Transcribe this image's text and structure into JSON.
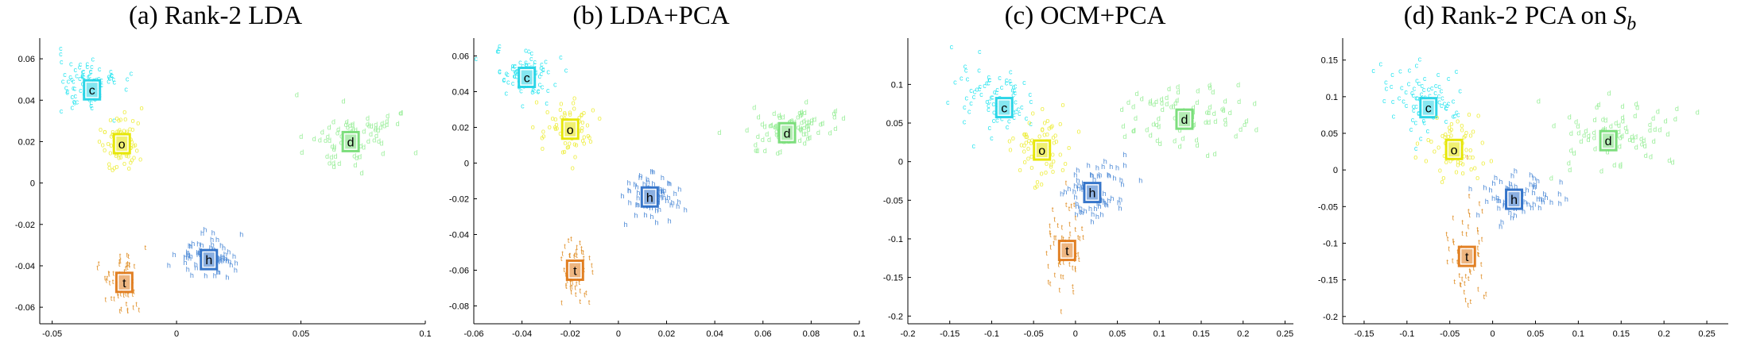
{
  "chart_data": [
    {
      "type": "scatter",
      "title": "(a) Rank-2 LDA",
      "xlim": [
        -0.055,
        0.1
      ],
      "ylim": [
        -0.068,
        0.07
      ],
      "xticks": [
        -0.05,
        0,
        0.05,
        0.1
      ],
      "xtick_labels": [
        "-0.05",
        "0",
        "0.05",
        "0.1"
      ],
      "yticks": [
        -0.06,
        -0.04,
        -0.02,
        0,
        0.02,
        0.04,
        0.06
      ],
      "ytick_labels": [
        "-0.06",
        "-0.04",
        "-0.02",
        "0",
        "0.02",
        "0.04",
        "0.06"
      ],
      "grid": false,
      "clusters": [
        {
          "label": "c",
          "color": "#33e6f0",
          "box": "#22d3e6",
          "center": [
            -0.034,
            0.045
          ],
          "spread": [
            0.006,
            0.006
          ],
          "tail": [
            -0.01,
            0.012
          ],
          "count": 80
        },
        {
          "label": "o",
          "color": "#eeee44",
          "box": "#e6e600",
          "center": [
            -0.022,
            0.019
          ],
          "spread": [
            0.005,
            0.008
          ],
          "tail": [
            0,
            0
          ],
          "count": 70
        },
        {
          "label": "d",
          "color": "#99ee99",
          "box": "#77dd77",
          "center": [
            0.07,
            0.02
          ],
          "spread": [
            0.01,
            0.006
          ],
          "tail": [
            0.02,
            0.008
          ],
          "count": 80
        },
        {
          "label": "h",
          "color": "#4d8ad6",
          "box": "#2d6fc8",
          "center": [
            0.013,
            -0.037
          ],
          "spread": [
            0.006,
            0.005
          ],
          "tail": [
            0.012,
            0
          ],
          "count": 70
        },
        {
          "label": "t",
          "color": "#e0902a",
          "box": "#e07a1a",
          "center": [
            -0.021,
            -0.048
          ],
          "spread": [
            0.004,
            0.008
          ],
          "tail": [
            0,
            0
          ],
          "count": 60
        }
      ]
    },
    {
      "type": "scatter",
      "title": "(b) LDA+PCA",
      "xlim": [
        -0.06,
        0.1
      ],
      "ylim": [
        -0.09,
        0.07
      ],
      "xticks": [
        -0.06,
        -0.04,
        -0.02,
        0,
        0.02,
        0.04,
        0.06,
        0.08,
        0.1
      ],
      "xtick_labels": [
        "-0.06",
        "-0.04",
        "-0.02",
        "0",
        "0.02",
        "0.04",
        "0.06",
        "0.08",
        "0.1"
      ],
      "yticks": [
        -0.08,
        -0.06,
        -0.04,
        -0.02,
        0,
        0.02,
        0.04,
        0.06
      ],
      "ytick_labels": [
        "-0.08",
        "-0.06",
        "-0.04",
        "-0.02",
        "0",
        "0.02",
        "0.04",
        "0.06"
      ],
      "grid": false,
      "clusters": [
        {
          "label": "c",
          "color": "#33e6f0",
          "box": "#22d3e6",
          "center": [
            -0.038,
            0.048
          ],
          "spread": [
            0.006,
            0.006
          ],
          "tail": [
            -0.01,
            0.012
          ],
          "count": 80
        },
        {
          "label": "o",
          "color": "#eeee44",
          "box": "#e6e600",
          "center": [
            -0.02,
            0.019
          ],
          "spread": [
            0.006,
            0.008
          ],
          "tail": [
            0,
            0
          ],
          "count": 70
        },
        {
          "label": "d",
          "color": "#99ee99",
          "box": "#77dd77",
          "center": [
            0.07,
            0.017
          ],
          "spread": [
            0.01,
            0.006
          ],
          "tail": [
            0.02,
            0.008
          ],
          "count": 80
        },
        {
          "label": "h",
          "color": "#4d8ad6",
          "box": "#2d6fc8",
          "center": [
            0.013,
            -0.019
          ],
          "spread": [
            0.005,
            0.006
          ],
          "tail": [
            0.012,
            0
          ],
          "count": 70
        },
        {
          "label": "t",
          "color": "#e0902a",
          "box": "#e07a1a",
          "center": [
            -0.018,
            -0.06
          ],
          "spread": [
            0.004,
            0.01
          ],
          "tail": [
            0,
            0
          ],
          "count": 60
        }
      ]
    },
    {
      "type": "scatter",
      "title": "(c) OCM+PCA",
      "xlim": [
        -0.2,
        0.26
      ],
      "ylim": [
        -0.21,
        0.16
      ],
      "xticks": [
        -0.2,
        -0.15,
        -0.1,
        -0.05,
        0,
        0.05,
        0.1,
        0.15,
        0.2,
        0.25
      ],
      "xtick_labels": [
        "-0.2",
        "-0.15",
        "-0.1",
        "-0.05",
        "0",
        "0.05",
        "0.1",
        "0.15",
        "0.2",
        "0.25"
      ],
      "yticks": [
        -0.2,
        -0.15,
        -0.1,
        -0.05,
        0,
        0.05,
        0.1
      ],
      "ytick_labels": [
        "-0.2",
        "-0.15",
        "-0.1",
        "-0.05",
        "0",
        "0.05",
        "0.1"
      ],
      "grid": false,
      "clusters": [
        {
          "label": "c",
          "color": "#33e6f0",
          "box": "#22d3e6",
          "center": [
            -0.085,
            0.07
          ],
          "spread": [
            0.02,
            0.02
          ],
          "tail": [
            -0.05,
            0.04
          ],
          "count": 80
        },
        {
          "label": "o",
          "color": "#eeee44",
          "box": "#e6e600",
          "center": [
            -0.04,
            0.015
          ],
          "spread": [
            0.018,
            0.02
          ],
          "tail": [
            0,
            0
          ],
          "count": 70
        },
        {
          "label": "d",
          "color": "#99ee99",
          "box": "#77dd77",
          "center": [
            0.13,
            0.055
          ],
          "spread": [
            0.035,
            0.025
          ],
          "tail": [
            0.06,
            0.035
          ],
          "count": 80
        },
        {
          "label": "h",
          "color": "#4d8ad6",
          "box": "#2d6fc8",
          "center": [
            0.02,
            -0.04
          ],
          "spread": [
            0.018,
            0.018
          ],
          "tail": [
            0.04,
            0
          ],
          "count": 70
        },
        {
          "label": "t",
          "color": "#e0902a",
          "box": "#e07a1a",
          "center": [
            -0.01,
            -0.115
          ],
          "spread": [
            0.012,
            0.035
          ],
          "tail": [
            0,
            0
          ],
          "count": 60
        }
      ]
    },
    {
      "type": "scatter",
      "title": "(d) Rank-2 PCA on ",
      "title_sub": "S",
      "title_subscript": "b",
      "xlim": [
        -0.175,
        0.275
      ],
      "ylim": [
        -0.21,
        0.18
      ],
      "xticks": [
        -0.15,
        -0.1,
        -0.05,
        0,
        0.05,
        0.1,
        0.15,
        0.2,
        0.25
      ],
      "xtick_labels": [
        "-0.15",
        "-0.1",
        "-0.05",
        "0",
        "0.05",
        "0.1",
        "0.15",
        "0.2",
        "0.25"
      ],
      "yticks": [
        -0.2,
        -0.15,
        -0.1,
        -0.05,
        0,
        0.05,
        0.1,
        0.15
      ],
      "ytick_labels": [
        "-0.2",
        "-0.15",
        "-0.1",
        "-0.05",
        "0",
        "0.05",
        "0.1",
        "0.15"
      ],
      "grid": false,
      "clusters": [
        {
          "label": "c",
          "color": "#33e6f0",
          "box": "#22d3e6",
          "center": [
            -0.075,
            0.085
          ],
          "spread": [
            0.02,
            0.02
          ],
          "tail": [
            -0.05,
            0.045
          ],
          "count": 80
        },
        {
          "label": "o",
          "color": "#eeee44",
          "box": "#e6e600",
          "center": [
            -0.045,
            0.028
          ],
          "spread": [
            0.018,
            0.022
          ],
          "tail": [
            0,
            0
          ],
          "count": 70
        },
        {
          "label": "d",
          "color": "#99ee99",
          "box": "#77dd77",
          "center": [
            0.135,
            0.04
          ],
          "spread": [
            0.035,
            0.022
          ],
          "tail": [
            0.07,
            0.03
          ],
          "count": 80
        },
        {
          "label": "h",
          "color": "#4d8ad6",
          "box": "#2d6fc8",
          "center": [
            0.025,
            -0.04
          ],
          "spread": [
            0.02,
            0.018
          ],
          "tail": [
            0.04,
            0
          ],
          "count": 70
        },
        {
          "label": "t",
          "color": "#e0902a",
          "box": "#e07a1a",
          "center": [
            -0.03,
            -0.118
          ],
          "spread": [
            0.012,
            0.035
          ],
          "tail": [
            0,
            0
          ],
          "count": 60
        }
      ]
    }
  ]
}
